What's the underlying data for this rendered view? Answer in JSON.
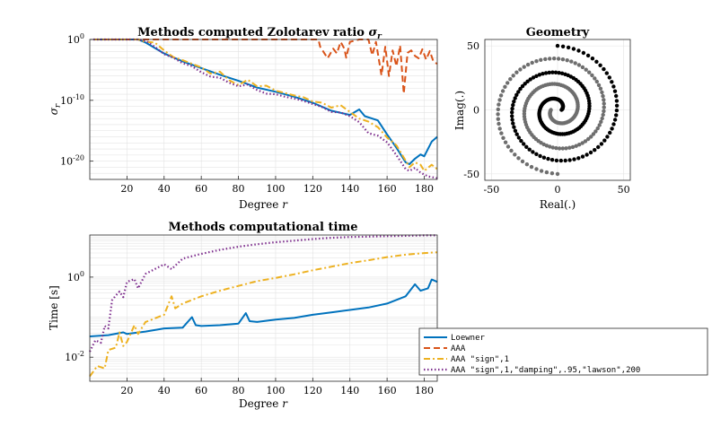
{
  "figure": {
    "colors": {
      "loewner": "#0072BD",
      "aaa": "#D95319",
      "aaa_sign": "#EDB120",
      "aaa_lawson": "#7E2F8E",
      "spiral_outer": "#6e6e6e",
      "spiral_inner": "#000000"
    }
  },
  "chart_data": [
    {
      "type": "line",
      "title_text": "Methods computed Zolotarev ratio",
      "title_symbol": "σ",
      "title_sub": "r",
      "xlabel_text": "Degree",
      "xlabel_var": "r",
      "ylabel_symbol": "σ",
      "ylabel_sub": "r",
      "yscale": "log",
      "xlim": [
        0,
        187
      ],
      "ylim_log10": [
        -23,
        0
      ],
      "xticks": [
        "20",
        "40",
        "60",
        "80",
        "100",
        "120",
        "140",
        "160",
        "180"
      ],
      "yticks": [
        {
          "base": "10",
          "exp": "0"
        },
        {
          "base": "10",
          "exp": "-10"
        },
        {
          "base": "10",
          "exp": "-20"
        }
      ],
      "grid": true,
      "series": [
        {
          "name": "Loewner",
          "log10_points": [
            [
              2,
              0
            ],
            [
              22,
              0
            ],
            [
              26,
              0
            ],
            [
              30,
              -0.5
            ],
            [
              40,
              -2.3
            ],
            [
              50,
              -3.6
            ],
            [
              60,
              -4.7
            ],
            [
              70,
              -5.8
            ],
            [
              80,
              -6.8
            ],
            [
              90,
              -7.9
            ],
            [
              100,
              -8.6
            ],
            [
              110,
              -9.4
            ],
            [
              120,
              -10.4
            ],
            [
              130,
              -11.7
            ],
            [
              140,
              -12.4
            ],
            [
              145,
              -11.5
            ],
            [
              148,
              -12.6
            ],
            [
              155,
              -13.3
            ],
            [
              160,
              -15.6
            ],
            [
              165,
              -17.8
            ],
            [
              170,
              -20.2
            ],
            [
              172,
              -20.5
            ],
            [
              175,
              -19.6
            ],
            [
              178,
              -18.9
            ],
            [
              180,
              -19.2
            ],
            [
              184,
              -16.8
            ],
            [
              187,
              -16.0
            ]
          ]
        },
        {
          "name": "AAA",
          "log10_points": [
            [
              2,
              0
            ],
            [
              123,
              0
            ],
            [
              124,
              -1.2
            ],
            [
              128,
              -3.1
            ],
            [
              131,
              -1.5
            ],
            [
              133,
              -2.3
            ],
            [
              135,
              -0.4
            ],
            [
              137,
              -1.5
            ],
            [
              138,
              -3.0
            ],
            [
              140,
              -0.4
            ],
            [
              145,
              0
            ],
            [
              150,
              0
            ],
            [
              152,
              -2.6
            ],
            [
              154,
              -0.4
            ],
            [
              157,
              -5.9
            ],
            [
              159,
              -1.2
            ],
            [
              161,
              -6.0
            ],
            [
              163,
              -1.8
            ],
            [
              165,
              -4.4
            ],
            [
              167,
              -1.0
            ],
            [
              169,
              -8.9
            ],
            [
              171,
              -2.2
            ],
            [
              173,
              -1.8
            ],
            [
              175,
              -2.7
            ],
            [
              177,
              -3.1
            ],
            [
              179,
              -1.6
            ],
            [
              181,
              -3.3
            ],
            [
              183,
              -1.9
            ],
            [
              185,
              -3.7
            ],
            [
              187,
              -4.0
            ]
          ]
        },
        {
          "name": "AAA \"sign\",1",
          "log10_points": [
            [
              2,
              0
            ],
            [
              26,
              0
            ],
            [
              30,
              -0.4
            ],
            [
              35,
              -0.5
            ],
            [
              40,
              -1.8
            ],
            [
              45,
              -2.9
            ],
            [
              50,
              -3.4
            ],
            [
              55,
              -4.0
            ],
            [
              60,
              -4.6
            ],
            [
              65,
              -5.6
            ],
            [
              70,
              -5.3
            ],
            [
              75,
              -6.7
            ],
            [
              80,
              -7.5
            ],
            [
              85,
              -6.6
            ],
            [
              90,
              -7.7
            ],
            [
              95,
              -7.6
            ],
            [
              100,
              -8.4
            ],
            [
              105,
              -8.8
            ],
            [
              110,
              -9.2
            ],
            [
              115,
              -9.5
            ],
            [
              120,
              -10.2
            ],
            [
              125,
              -10.4
            ],
            [
              130,
              -11.2
            ],
            [
              135,
              -10.8
            ],
            [
              140,
              -11.9
            ],
            [
              145,
              -13.0
            ],
            [
              150,
              -13.5
            ],
            [
              155,
              -14.4
            ],
            [
              160,
              -16.1
            ],
            [
              165,
              -17.4
            ],
            [
              170,
              -19.9
            ],
            [
              172,
              -21.0
            ],
            [
              175,
              -20.2
            ],
            [
              178,
              -20.6
            ],
            [
              180,
              -21.6
            ],
            [
              184,
              -20.6
            ],
            [
              187,
              -21.3
            ]
          ]
        },
        {
          "name": "AAA \"sign\",1,\"damping\",.95,\"lawson\",200",
          "log10_points": [
            [
              2,
              0
            ],
            [
              26,
              0
            ],
            [
              30,
              -0.2
            ],
            [
              35,
              -1.2
            ],
            [
              40,
              -2.4
            ],
            [
              45,
              -3.0
            ],
            [
              50,
              -3.9
            ],
            [
              55,
              -4.4
            ],
            [
              60,
              -5.4
            ],
            [
              65,
              -6.1
            ],
            [
              70,
              -6.3
            ],
            [
              75,
              -7.1
            ],
            [
              80,
              -7.7
            ],
            [
              85,
              -7.4
            ],
            [
              90,
              -8.3
            ],
            [
              95,
              -8.9
            ],
            [
              100,
              -9.0
            ],
            [
              105,
              -9.4
            ],
            [
              110,
              -9.7
            ],
            [
              115,
              -10.1
            ],
            [
              120,
              -10.6
            ],
            [
              125,
              -11.1
            ],
            [
              130,
              -11.9
            ],
            [
              135,
              -12.0
            ],
            [
              140,
              -12.6
            ],
            [
              145,
              -13.6
            ],
            [
              150,
              -15.4
            ],
            [
              155,
              -15.8
            ],
            [
              160,
              -16.9
            ],
            [
              165,
              -19.0
            ],
            [
              170,
              -21.3
            ],
            [
              172,
              -21.6
            ],
            [
              175,
              -21.1
            ],
            [
              178,
              -21.9
            ],
            [
              182,
              -22.5
            ],
            [
              187,
              -22.8
            ]
          ]
        }
      ]
    },
    {
      "type": "scatter",
      "title": "Geometry",
      "xlabel": "Real(.)",
      "ylabel": "Imag(.)",
      "xlim": [
        -55,
        55
      ],
      "ylim": [
        -55,
        55
      ],
      "xticks": [
        "-50",
        "0",
        "50"
      ],
      "yticks": [
        "50",
        "0",
        "-50"
      ],
      "grid": true,
      "series": [
        {
          "spiral": "outer",
          "r_start": 5,
          "r_end": 50,
          "theta_start_deg": 180,
          "theta_end_deg": 990
        },
        {
          "spiral": "inner",
          "r_start": 3,
          "r_end": 50,
          "theta_start_deg": 0,
          "theta_end_deg": 810
        }
      ]
    },
    {
      "type": "line",
      "title": "Methods computational time",
      "xlabel_text": "Degree",
      "xlabel_var": "r",
      "ylabel": "Time [s]",
      "yscale": "log",
      "xlim": [
        0,
        187
      ],
      "ylim_log10": [
        -2.6,
        1.05
      ],
      "xticks": [
        "20",
        "40",
        "60",
        "80",
        "100",
        "120",
        "140",
        "160",
        "180"
      ],
      "yticks": [
        {
          "base": "10",
          "exp": "0"
        },
        {
          "base": "10",
          "exp": "-2"
        }
      ],
      "grid": true,
      "series": [
        {
          "name": "Loewner",
          "log10_points": [
            [
              0,
              -1.48
            ],
            [
              10,
              -1.45
            ],
            [
              18,
              -1.38
            ],
            [
              20,
              -1.42
            ],
            [
              30,
              -1.36
            ],
            [
              40,
              -1.28
            ],
            [
              50,
              -1.26
            ],
            [
              55,
              -1.0
            ],
            [
              57,
              -1.2
            ],
            [
              60,
              -1.22
            ],
            [
              70,
              -1.2
            ],
            [
              80,
              -1.16
            ],
            [
              84,
              -0.9
            ],
            [
              86,
              -1.1
            ],
            [
              90,
              -1.12
            ],
            [
              100,
              -1.06
            ],
            [
              110,
              -1.02
            ],
            [
              120,
              -0.94
            ],
            [
              130,
              -0.88
            ],
            [
              140,
              -0.82
            ],
            [
              150,
              -0.76
            ],
            [
              160,
              -0.66
            ],
            [
              170,
              -0.48
            ],
            [
              175,
              -0.18
            ],
            [
              178,
              -0.34
            ],
            [
              182,
              -0.28
            ],
            [
              184,
              -0.06
            ],
            [
              187,
              -0.12
            ]
          ]
        },
        {
          "name": "AAA",
          "log10_points": []
        },
        {
          "name": "AAA \"sign\",1",
          "log10_points": [
            [
              0,
              -2.48
            ],
            [
              4,
              -2.22
            ],
            [
              8,
              -2.28
            ],
            [
              10,
              -1.82
            ],
            [
              14,
              -1.76
            ],
            [
              16,
              -1.38
            ],
            [
              18,
              -1.72
            ],
            [
              20,
              -1.62
            ],
            [
              24,
              -1.2
            ],
            [
              26,
              -1.42
            ],
            [
              30,
              -1.12
            ],
            [
              40,
              -0.94
            ],
            [
              44,
              -0.48
            ],
            [
              46,
              -0.78
            ],
            [
              50,
              -0.66
            ],
            [
              60,
              -0.48
            ],
            [
              70,
              -0.34
            ],
            [
              80,
              -0.22
            ],
            [
              90,
              -0.1
            ],
            [
              100,
              -0.02
            ],
            [
              110,
              0.07
            ],
            [
              120,
              0.17
            ],
            [
              130,
              0.26
            ],
            [
              140,
              0.35
            ],
            [
              150,
              0.42
            ],
            [
              160,
              0.5
            ],
            [
              170,
              0.56
            ],
            [
              180,
              0.6
            ],
            [
              187,
              0.62
            ]
          ]
        },
        {
          "name": "AAA \"sign\",1,\"damping\",.95,\"lawson\",200",
          "log10_points": [
            [
              0,
              -1.86
            ],
            [
              3,
              -1.58
            ],
            [
              6,
              -1.64
            ],
            [
              8,
              -1.22
            ],
            [
              10,
              -1.28
            ],
            [
              12,
              -0.58
            ],
            [
              14,
              -0.46
            ],
            [
              16,
              -0.36
            ],
            [
              18,
              -0.5
            ],
            [
              20,
              -0.12
            ],
            [
              24,
              -0.05
            ],
            [
              26,
              -0.28
            ],
            [
              30,
              0.08
            ],
            [
              40,
              0.32
            ],
            [
              44,
              0.2
            ],
            [
              50,
              0.46
            ],
            [
              60,
              0.58
            ],
            [
              70,
              0.68
            ],
            [
              80,
              0.76
            ],
            [
              90,
              0.82
            ],
            [
              100,
              0.87
            ],
            [
              110,
              0.91
            ],
            [
              120,
              0.95
            ],
            [
              130,
              0.98
            ],
            [
              140,
              1.0
            ],
            [
              150,
              1.01
            ],
            [
              160,
              1.02
            ],
            [
              170,
              1.03
            ],
            [
              180,
              1.04
            ],
            [
              187,
              1.04
            ]
          ]
        }
      ]
    }
  ]
}
